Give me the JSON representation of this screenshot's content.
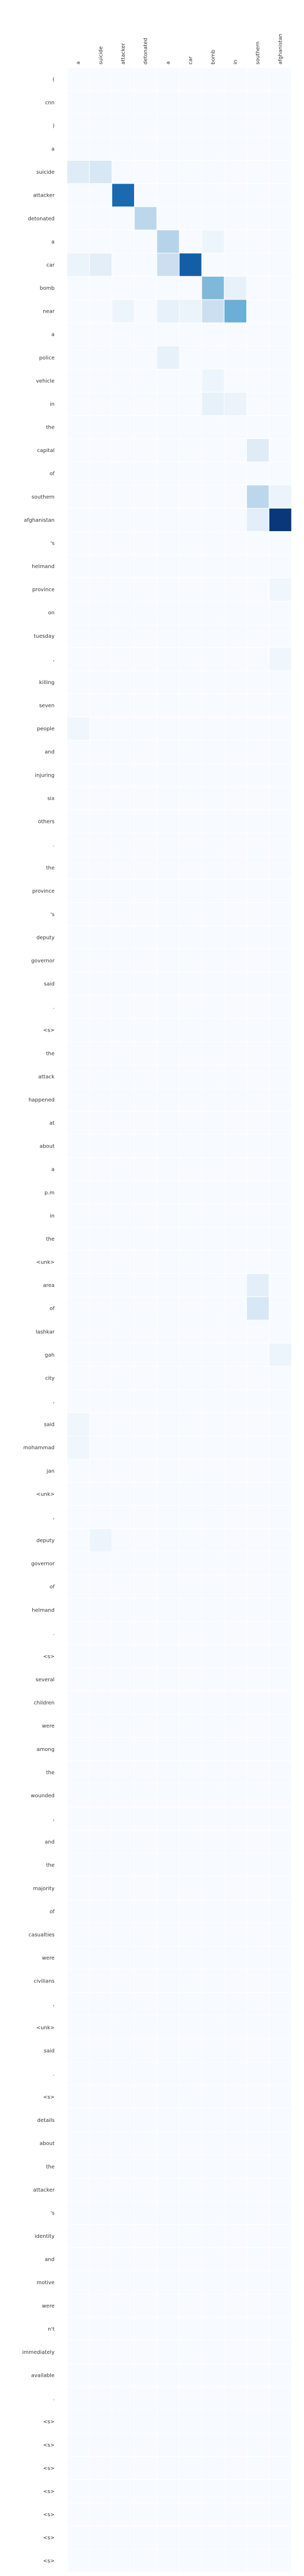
{
  "chart_data": {
    "type": "heatmap",
    "x_labels": [
      "a",
      "suicide",
      "attacker",
      "detonated",
      "a",
      "car",
      "bomb",
      "in",
      "southern",
      "afghanistan"
    ],
    "y_labels": [
      "(",
      "cnn",
      ")",
      "a",
      "suicide",
      "attacker",
      "detonated",
      "a",
      "car",
      "bomb",
      "near",
      "a",
      "police",
      "vehicle",
      "in",
      "the",
      "capital",
      "of",
      "southern",
      "afghanistan",
      "'s",
      "helmand",
      "province",
      "on",
      "tuesday",
      ",",
      "killing",
      "seven",
      "people",
      "and",
      "injuring",
      "six",
      "others",
      ".",
      "the",
      "province",
      "'s",
      "deputy",
      "governor",
      "said",
      ".",
      "<s>",
      "the",
      "attack",
      "happened",
      "at",
      "about",
      "a",
      "p.m",
      "in",
      "the",
      "<unk>",
      "area",
      "of",
      "lashkar",
      "gah",
      "city",
      ",",
      "said",
      "mohammad",
      "jan",
      "<unk>",
      ",",
      "deputy",
      "governor",
      "of",
      "helmand",
      ".",
      "<s>",
      "several",
      "children",
      "were",
      "among",
      "the",
      "wounded",
      ",",
      "and",
      "the",
      "majority",
      "of",
      "casualties",
      "were",
      "civilians",
      ",",
      "<unk>",
      "said",
      ".",
      "<s>",
      "details",
      "about",
      "the",
      "attacker",
      "'s",
      "identity",
      "and",
      "motive",
      "were",
      "n't",
      "immediately",
      "available",
      ".",
      "<s>",
      "<s>",
      "<s>",
      "<s>",
      "<s>",
      "<s>",
      "<s>"
    ],
    "value_range": [
      0,
      1
    ],
    "colormap": "Blues",
    "grid": true,
    "cells": [
      [
        4,
        0,
        0.12
      ],
      [
        4,
        1,
        0.16
      ],
      [
        5,
        2,
        0.78
      ],
      [
        6,
        3,
        0.28
      ],
      [
        7,
        4,
        0.3
      ],
      [
        8,
        0,
        0.06
      ],
      [
        8,
        1,
        0.1
      ],
      [
        8,
        4,
        0.22
      ],
      [
        8,
        5,
        0.82
      ],
      [
        9,
        6,
        0.45
      ],
      [
        10,
        2,
        0.05
      ],
      [
        10,
        4,
        0.08
      ],
      [
        10,
        6,
        0.22
      ],
      [
        10,
        7,
        0.5
      ],
      [
        12,
        4,
        0.08
      ],
      [
        13,
        6,
        0.05
      ],
      [
        14,
        6,
        0.08
      ],
      [
        14,
        7,
        0.06
      ],
      [
        16,
        8,
        0.12
      ],
      [
        18,
        8,
        0.28
      ],
      [
        18,
        9,
        0.06
      ],
      [
        19,
        8,
        0.1
      ],
      [
        19,
        9,
        0.97
      ],
      [
        7,
        6,
        0.05
      ],
      [
        9,
        7,
        0.08
      ],
      [
        10,
        5,
        0.06
      ],
      [
        28,
        0,
        0.04
      ],
      [
        52,
        8,
        0.1
      ],
      [
        53,
        8,
        0.16
      ],
      [
        58,
        0,
        0.04
      ],
      [
        59,
        0,
        0.04
      ],
      [
        63,
        1,
        0.05
      ],
      [
        22,
        9,
        0.04
      ],
      [
        25,
        9,
        0.04
      ],
      [
        55,
        9,
        0.05
      ]
    ]
  }
}
